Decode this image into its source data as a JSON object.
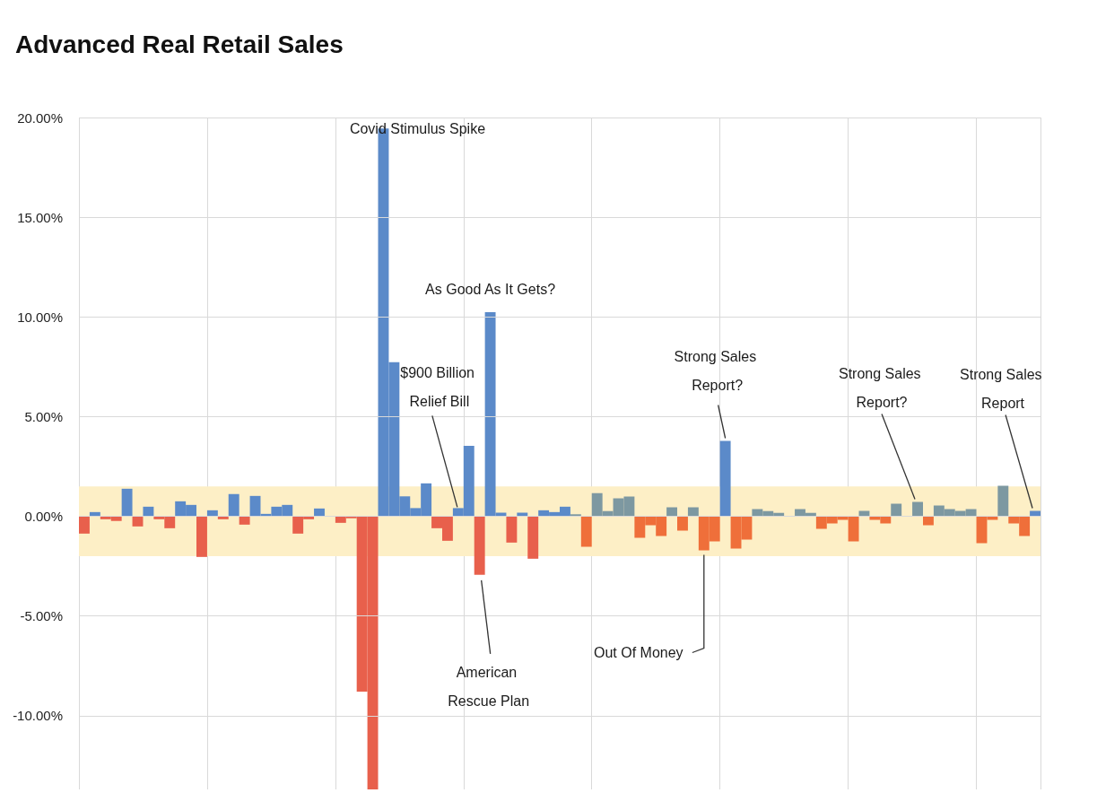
{
  "chart_data": {
    "type": "bar",
    "title": "Advanced Real Retail Sales",
    "categories": [
      null,
      null,
      null,
      null,
      null,
      null,
      null,
      null,
      null,
      null,
      null,
      null,
      null,
      null,
      null,
      null,
      null,
      null,
      null,
      null,
      null,
      null,
      null,
      null,
      null,
      null,
      null,
      null,
      null,
      null,
      null,
      null,
      null,
      null,
      null,
      null,
      null,
      null,
      null,
      null,
      null,
      null,
      null,
      null,
      null,
      null,
      null,
      null,
      null,
      null,
      null,
      null,
      null,
      null,
      null,
      null,
      null,
      null,
      null,
      null,
      null,
      null,
      null,
      null,
      null,
      null,
      null,
      null,
      null,
      null,
      null,
      null,
      null,
      null,
      null,
      null,
      null,
      null,
      null,
      null,
      null,
      null,
      null,
      null,
      null,
      null,
      null,
      null,
      null,
      null
    ],
    "values": [
      -0.87,
      0.21,
      -0.15,
      -0.24,
      1.38,
      -0.51,
      0.48,
      -0.15,
      -0.6,
      0.75,
      0.57,
      -2.04,
      0.3,
      -0.15,
      1.11,
      -0.42,
      1.02,
      0.12,
      0.48,
      0.57,
      -0.87,
      -0.15,
      0.39,
      0,
      -0.33,
      -0.1,
      -8.8,
      -13.7,
      19.45,
      7.73,
      1.0,
      0.41,
      1.65,
      -0.6,
      -1.23,
      0.41,
      3.53,
      -2.94,
      10.24,
      0.18,
      -1.32,
      0.18,
      -2.13,
      0.3,
      0.21,
      0.48,
      0.1,
      -1.53,
      1.16,
      0.26,
      0.9,
      0.99,
      -1.08,
      -0.45,
      -0.99,
      0.45,
      -0.72,
      0.45,
      -1.71,
      -1.26,
      3.78,
      -1.62,
      -1.17,
      0.36,
      0.26,
      0.17,
      0,
      0.36,
      0.17,
      -0.63,
      -0.36,
      -0.18,
      -1.26,
      0.27,
      -0.18,
      -0.36,
      0.63,
      0,
      0.72,
      -0.45,
      0.54,
      0.36,
      0.27,
      0.36,
      -1.35,
      -0.18,
      1.53,
      -0.36,
      -0.99,
      0.27
    ],
    "colors": [
      "#e8604c",
      "#5b8ac9",
      "#e8604c",
      "#e8604c",
      "#5b8ac9",
      "#e8604c",
      "#5b8ac9",
      "#e8604c",
      "#e8604c",
      "#5b8ac9",
      "#5b8ac9",
      "#e8604c",
      "#5b8ac9",
      "#e8604c",
      "#5b8ac9",
      "#e8604c",
      "#5b8ac9",
      "#5b8ac9",
      "#5b8ac9",
      "#5b8ac9",
      "#e8604c",
      "#e8604c",
      "#5b8ac9",
      "#5b8ac9",
      "#e8604c",
      "#e8604c",
      "#e8604c",
      "#e8604c",
      "#5b8ac9",
      "#5b8ac9",
      "#5b8ac9",
      "#5b8ac9",
      "#5b8ac9",
      "#e8604c",
      "#e8604c",
      "#5b8ac9",
      "#5b8ac9",
      "#e8604c",
      "#5b8ac9",
      "#5b8ac9",
      "#e8604c",
      "#5b8ac9",
      "#e8604c",
      "#5b8ac9",
      "#5b8ac9",
      "#5b8ac9",
      "#7d98a1",
      "#ef6f3a",
      "#7d98a1",
      "#7d98a1",
      "#7d98a1",
      "#7d98a1",
      "#ef6f3a",
      "#ef6f3a",
      "#ef6f3a",
      "#7d98a1",
      "#ef6f3a",
      "#7d98a1",
      "#ef6f3a",
      "#ef6f3a",
      "#5b8ac9",
      "#ef6f3a",
      "#ef6f3a",
      "#7d98a1",
      "#7d98a1",
      "#7d98a1",
      "#7d98a1",
      "#7d98a1",
      "#7d98a1",
      "#ef6f3a",
      "#ef6f3a",
      "#ef6f3a",
      "#ef6f3a",
      "#7d98a1",
      "#ef6f3a",
      "#ef6f3a",
      "#7d98a1",
      "#7d98a1",
      "#7d98a1",
      "#ef6f3a",
      "#7d98a1",
      "#7d98a1",
      "#7d98a1",
      "#7d98a1",
      "#ef6f3a",
      "#ef6f3a",
      "#7d98a1",
      "#ef6f3a",
      "#ef6f3a",
      "#5b8ac9"
    ],
    "ylim": [
      -13.7,
      20
    ],
    "yticks": [
      {
        "value": -10,
        "label": "-10.00%"
      },
      {
        "value": -5,
        "label": "-5.00%"
      },
      {
        "value": 0,
        "label": "0.00%"
      },
      {
        "value": 5,
        "label": "5.00%"
      },
      {
        "value": 10,
        "label": "10.00%"
      },
      {
        "value": 15,
        "label": "15.00%"
      },
      {
        "value": 20,
        "label": "20.00%"
      }
    ],
    "tick_labels": "y",
    "grid": true,
    "bands": [
      {
        "axis": "y",
        "from": -2,
        "to": 1.5,
        "color": "#fdefc6"
      }
    ],
    "annotations": [
      "Covid Stimulus Spike",
      "As Good As It Gets?",
      "$900 Billion Relief Bill",
      "American Rescue Plan",
      "Strong Sales Report?",
      "Out Of Money",
      "Strong Sales Report?",
      "Strong Sales Report"
    ]
  }
}
